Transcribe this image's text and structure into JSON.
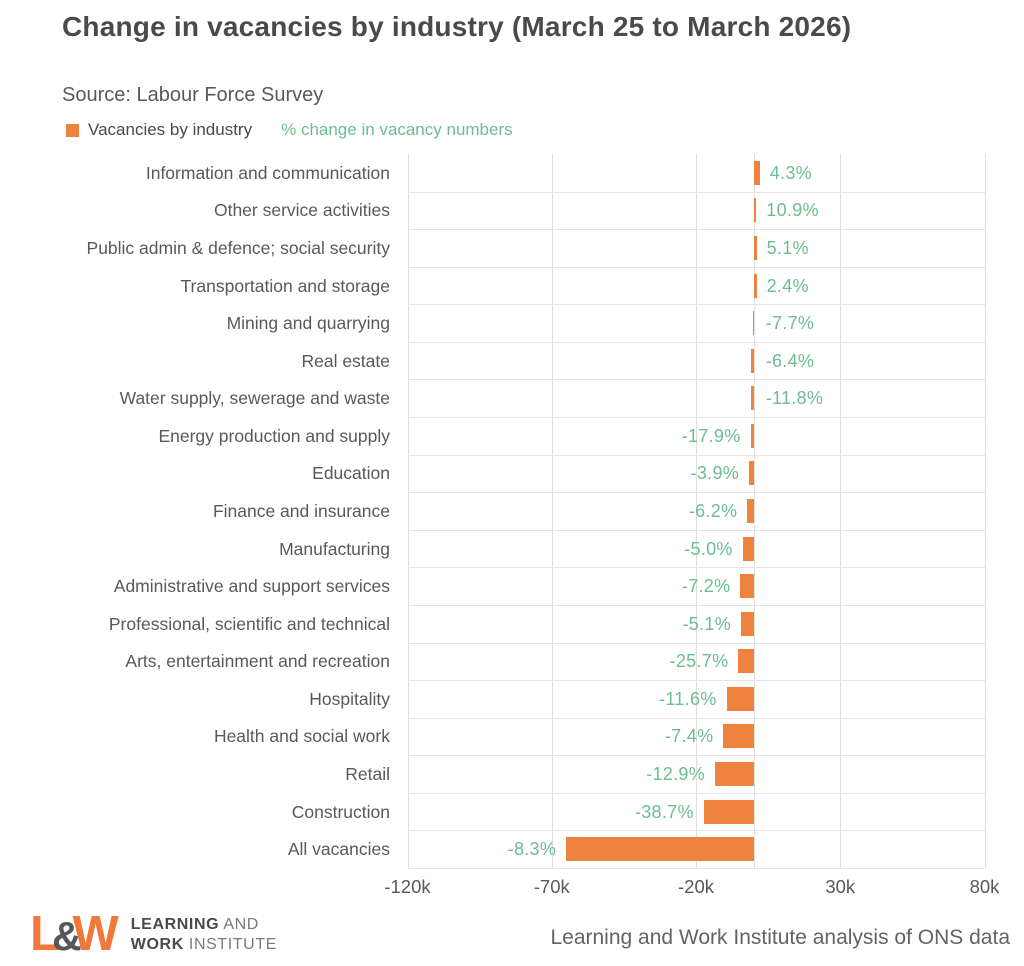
{
  "header": {
    "title": "Change in vacancies by industry (March 25 to March 2026)",
    "source": "Source: Labour Force Survey"
  },
  "legend": {
    "series_label": "Vacancies by industry",
    "value_label": "% change in vacancy numbers"
  },
  "chart_data": {
    "type": "bar",
    "orientation": "horizontal",
    "title": "Change in vacancies by industry (March 25 to March 2026)",
    "subtitle": "Source: Labour Force Survey",
    "categories": [
      "Information and communication",
      "Other service activities",
      "Public admin & defence; social security",
      "Transportation and storage",
      "Mining and quarrying",
      "Real estate",
      "Water supply, sewerage and waste",
      "Energy production and supply",
      "Education",
      "Finance and insurance",
      "Manufacturing",
      "Administrative and support services",
      "Professional, scientific and technical",
      "Arts, entertainment and recreation",
      "Hospitality",
      "Health and social work",
      "Retail",
      "Construction",
      "All vacancies"
    ],
    "pct_labels": [
      "4.3%",
      "10.9%",
      "5.1%",
      "2.4%",
      "-7.7%",
      "-6.4%",
      "-11.8%",
      "-17.9%",
      "-3.9%",
      "-6.2%",
      "-5.0%",
      "-7.2%",
      "-5.1%",
      "-25.7%",
      "-11.6%",
      "-7.4%",
      "-12.9%",
      "-38.7%",
      "-8.3%"
    ],
    "bar_values_thousands_est": [
      2.1,
      0.9,
      1.0,
      1.0,
      -0.1,
      -0.8,
      -0.9,
      -1.1,
      -1.6,
      -2.2,
      -3.8,
      -4.6,
      -4.4,
      -5.3,
      -9.4,
      -10.5,
      -13.4,
      -17.3,
      -65
    ],
    "value_unit": "thousands of vacancies (bar length); green labels show % change",
    "x_ticks": {
      "labels": [
        "-120k",
        "-70k",
        "-20k",
        "30k",
        "80k"
      ],
      "values": [
        -120,
        -70,
        -20,
        30,
        80
      ]
    },
    "xlim": [
      -120,
      80
    ],
    "grid": true,
    "zero_line": true,
    "legend_position": "top-left",
    "bar_color": "#ee8340",
    "pct_label_color": "#6cbe8e"
  },
  "colors": {
    "bar_orange": "#ee8340",
    "green_label": "#6cbe8e",
    "title_gray": "#4a4a4a",
    "text_gray": "#595959",
    "gridline": "#dedede",
    "logo_orange": "#f0783a",
    "logo_dark": "#54565a"
  },
  "footer": {
    "logo": {
      "l": "L",
      "amp": "&",
      "w": "W",
      "line1_bold": "LEARNING",
      "line1_rest": "AND",
      "line2_bold": "WORK",
      "line2_rest": "INSTITUTE"
    },
    "attribution": "Learning and Work Institute analysis of ONS data"
  }
}
